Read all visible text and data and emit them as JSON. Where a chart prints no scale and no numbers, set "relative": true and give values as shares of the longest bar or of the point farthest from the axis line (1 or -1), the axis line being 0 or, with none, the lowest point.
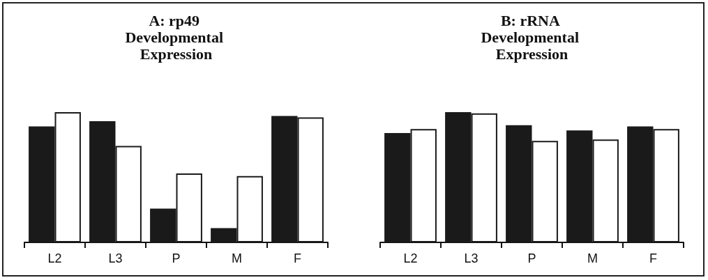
{
  "chart_data": [
    {
      "type": "bar",
      "title": "A: rp49 Developmental Expression",
      "categories": [
        "L2",
        "L3",
        "P",
        "M",
        "F"
      ],
      "relative": true,
      "series": [
        {
          "color": "#1a1a1a",
          "values": [
            0.89,
            0.93,
            0.26,
            0.11,
            0.97
          ]
        },
        {
          "color": "#ffffff",
          "values": [
            1,
            0.74,
            0.53,
            0.51,
            0.96
          ]
        }
      ]
    },
    {
      "type": "bar",
      "title": "B: rRNA Developmental Expression",
      "categories": [
        "L2",
        "L3",
        "P",
        "M",
        "F"
      ],
      "relative": true,
      "series": [
        {
          "color": "#1a1a1a",
          "values": [
            0.84,
            1,
            0.9,
            0.86,
            0.89
          ]
        },
        {
          "color": "#ffffff",
          "values": [
            0.87,
            0.99,
            0.78,
            0.79,
            0.87
          ]
        }
      ]
    }
  ]
}
